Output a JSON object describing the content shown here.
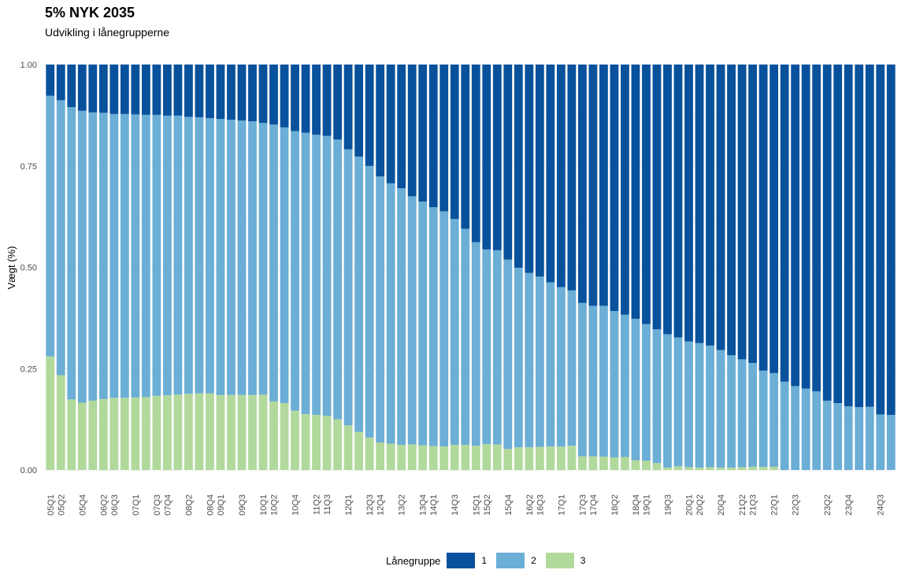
{
  "title": "5% NYK 2035",
  "subtitle": "Udvikling i lånegrupperne",
  "chart_data": {
    "type": "bar",
    "stacked": true,
    "ylabel": "Vægt (%)",
    "xlabel": "",
    "ylim": [
      0,
      1
    ],
    "yticks": [
      "0.00",
      "0.25",
      "0.50",
      "0.75",
      "1.00"
    ],
    "grid": true,
    "legend_position": "bottom",
    "legend_title": "Lånegruppe",
    "categories": [
      "05Q1",
      "05Q2",
      "05Q3",
      "05Q4",
      "06Q1",
      "06Q2",
      "06Q3",
      "06Q4",
      "07Q1",
      "07Q2",
      "07Q3",
      "07Q4",
      "08Q1",
      "08Q2",
      "08Q3",
      "08Q4",
      "09Q1",
      "09Q2",
      "09Q3",
      "09Q4",
      "10Q1",
      "10Q2",
      "10Q3",
      "10Q4",
      "11Q1",
      "11Q2",
      "11Q3",
      "11Q4",
      "12Q1",
      "12Q2",
      "12Q3",
      "12Q4",
      "13Q1",
      "13Q2",
      "13Q3",
      "13Q4",
      "14Q1",
      "14Q2",
      "14Q3",
      "14Q4",
      "15Q1",
      "15Q2",
      "15Q3",
      "15Q4",
      "16Q1",
      "16Q2",
      "16Q3",
      "16Q4",
      "17Q1",
      "17Q2",
      "17Q3",
      "17Q4",
      "18Q1",
      "18Q2",
      "18Q3",
      "18Q4",
      "19Q1",
      "19Q2",
      "19Q3",
      "19Q4",
      "20Q1",
      "20Q2",
      "20Q3",
      "20Q4",
      "21Q1",
      "21Q2",
      "21Q3",
      "21Q4",
      "22Q1",
      "22Q2",
      "22Q3",
      "22Q4",
      "23Q1",
      "23Q2",
      "23Q3",
      "23Q4",
      "24Q1",
      "24Q2",
      "24Q3",
      "24Q4"
    ],
    "visible_tick_labels": [
      "05Q1",
      "05Q2",
      "05Q4",
      "06Q2",
      "06Q3",
      "07Q1",
      "07Q3",
      "07Q4",
      "08Q2",
      "08Q4",
      "09Q1",
      "09Q3",
      "10Q1",
      "10Q2",
      "10Q4",
      "11Q2",
      "11Q3",
      "12Q1",
      "12Q3",
      "12Q4",
      "13Q2",
      "13Q4",
      "14Q1",
      "14Q3",
      "15Q1",
      "15Q2",
      "15Q4",
      "16Q2",
      "16Q3",
      "17Q1",
      "17Q3",
      "17Q4",
      "18Q2",
      "18Q4",
      "19Q1",
      "19Q3",
      "20Q1",
      "20Q2",
      "20Q4",
      "21Q2",
      "21Q3",
      "22Q1",
      "22Q3",
      "23Q2",
      "23Q4",
      "24Q3"
    ],
    "series": [
      {
        "name": "1",
        "color": "#08519c",
        "values": [
          0.077,
          0.088,
          0.105,
          0.114,
          0.118,
          0.119,
          0.122,
          0.122,
          0.123,
          0.124,
          0.124,
          0.126,
          0.126,
          0.129,
          0.13,
          0.132,
          0.134,
          0.136,
          0.138,
          0.14,
          0.144,
          0.148,
          0.155,
          0.164,
          0.168,
          0.173,
          0.176,
          0.185,
          0.209,
          0.227,
          0.25,
          0.276,
          0.293,
          0.305,
          0.325,
          0.338,
          0.352,
          0.362,
          0.381,
          0.405,
          0.438,
          0.456,
          0.458,
          0.481,
          0.501,
          0.514,
          0.523,
          0.537,
          0.549,
          0.557,
          0.588,
          0.595,
          0.595,
          0.608,
          0.617,
          0.627,
          0.64,
          0.653,
          0.665,
          0.673,
          0.683,
          0.687,
          0.693,
          0.704,
          0.717,
          0.727,
          0.736,
          0.755,
          0.761,
          0.782,
          0.793,
          0.799,
          0.806,
          0.829,
          0.835,
          0.843,
          0.845,
          0.844,
          0.863,
          0.864
        ]
      },
      {
        "name": "2",
        "color": "#6baed6",
        "values": [
          0.643,
          0.678,
          0.721,
          0.72,
          0.711,
          0.706,
          0.7,
          0.7,
          0.698,
          0.696,
          0.693,
          0.69,
          0.688,
          0.683,
          0.681,
          0.679,
          0.681,
          0.679,
          0.677,
          0.675,
          0.67,
          0.683,
          0.68,
          0.69,
          0.694,
          0.691,
          0.69,
          0.69,
          0.681,
          0.679,
          0.67,
          0.656,
          0.642,
          0.633,
          0.612,
          0.601,
          0.589,
          0.58,
          0.557,
          0.533,
          0.502,
          0.48,
          0.479,
          0.467,
          0.443,
          0.43,
          0.42,
          0.405,
          0.393,
          0.383,
          0.378,
          0.371,
          0.372,
          0.361,
          0.351,
          0.349,
          0.337,
          0.33,
          0.329,
          0.318,
          0.31,
          0.307,
          0.3,
          0.29,
          0.277,
          0.266,
          0.256,
          0.237,
          0.231,
          0.218,
          0.207,
          0.201,
          0.194,
          0.171,
          0.165,
          0.157,
          0.155,
          0.156,
          0.137,
          0.136
        ]
      },
      {
        "name": "3",
        "color": "#b2d99c",
        "values": [
          0.28,
          0.234,
          0.174,
          0.166,
          0.171,
          0.175,
          0.178,
          0.178,
          0.179,
          0.18,
          0.183,
          0.184,
          0.186,
          0.188,
          0.189,
          0.189,
          0.185,
          0.185,
          0.185,
          0.185,
          0.186,
          0.169,
          0.165,
          0.146,
          0.138,
          0.136,
          0.134,
          0.125,
          0.11,
          0.094,
          0.08,
          0.068,
          0.065,
          0.062,
          0.063,
          0.061,
          0.059,
          0.058,
          0.062,
          0.062,
          0.06,
          0.064,
          0.063,
          0.052,
          0.056,
          0.056,
          0.057,
          0.058,
          0.058,
          0.06,
          0.034,
          0.034,
          0.033,
          0.031,
          0.032,
          0.024,
          0.023,
          0.017,
          0.006,
          0.009,
          0.007,
          0.006,
          0.007,
          0.006,
          0.006,
          0.007,
          0.008,
          0.008,
          0.008,
          0.0,
          0.0,
          0.0,
          0.0,
          0.0,
          0.0,
          0.0,
          0.0,
          0.0,
          0.0,
          0.0
        ]
      }
    ]
  }
}
